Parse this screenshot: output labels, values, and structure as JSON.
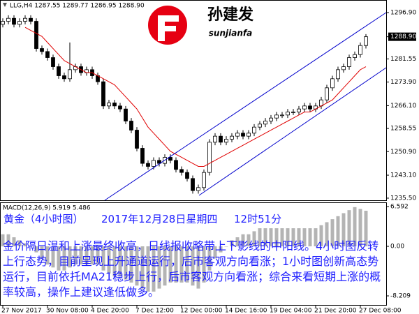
{
  "header_text": "LLG,H4 1287.55 1289.77 1286.95 1288.90",
  "logo": {
    "name": "孙建发",
    "subname": "sunjianfa"
  },
  "caption": {
    "title": "黄金（4小时图）",
    "date": "2017年12月28日星期四",
    "time": "12时51分",
    "text": "金价隔日温和上涨最终收高，日线报收略带上下影线的中阳线。4小时图反转上行态势，目前呈现上升通道运行，后市客观方向看涨；1小时图创新高态势运行，目前依托MA21稳步上行，后市客观方向看涨；综合来看短期上涨的概率较高，操作上建议逢低做多。"
  },
  "chart_data": [
    {
      "type": "candlestick",
      "categories": [
        "27 Nov 2017",
        null,
        null,
        null,
        null,
        null,
        null,
        null,
        "30 Nov 08:00",
        null,
        null,
        null,
        null,
        null,
        null,
        null,
        "4 Dec 20:00",
        null,
        null,
        null,
        null,
        null,
        null,
        null,
        "7 Dec 12:00",
        null,
        null,
        null,
        null,
        null,
        null,
        null,
        "12 Dec 00:00",
        null,
        null,
        null,
        null,
        null,
        null,
        null,
        "14 Dec 16:00",
        null,
        null,
        null,
        null,
        null,
        null,
        null,
        "19 Dec 04:00",
        null,
        null,
        null,
        null,
        null,
        null,
        null,
        "21 Dec 20:00",
        null,
        null,
        null,
        null,
        null,
        null,
        null,
        "27 Dec 08:00",
        null
      ],
      "open": [
        1293,
        1294,
        1295,
        1293,
        1294,
        1295,
        1294,
        1285,
        1284,
        1282,
        1279,
        1276,
        1275,
        1278,
        1279,
        1277,
        1278,
        1276,
        1274,
        1266,
        1267,
        1266,
        1265,
        1261,
        1258,
        1252,
        1247,
        1246,
        1248,
        1247,
        1249,
        1248,
        1245,
        1244,
        1242,
        1238,
        1239,
        1244,
        1254,
        1256,
        1254,
        1255,
        1256,
        1257,
        1256,
        1257,
        1259,
        1260,
        1261,
        1262,
        1263,
        1263,
        1264,
        1264,
        1265,
        1266,
        1265,
        1266,
        1268,
        1272,
        1275,
        1278,
        1279,
        1282,
        1283,
        1286
      ],
      "high": [
        1295,
        1296,
        1296,
        1295,
        1296,
        1296,
        1295,
        1286,
        1285,
        1283,
        1280,
        1277,
        1287,
        1280,
        1280,
        1279,
        1279,
        1277,
        1275,
        1268,
        1268,
        1267,
        1266,
        1262,
        1259,
        1253,
        1248,
        1249,
        1249,
        1250,
        1250,
        1249,
        1246,
        1245,
        1243,
        1240,
        1245,
        1255,
        1257,
        1257,
        1256,
        1257,
        1258,
        1258,
        1258,
        1260,
        1261,
        1262,
        1263,
        1264,
        1264,
        1265,
        1265,
        1266,
        1267,
        1267,
        1267,
        1269,
        1273,
        1276,
        1279,
        1280,
        1283,
        1284,
        1287,
        1289.77
      ],
      "low": [
        1292,
        1293,
        1292,
        1292,
        1293,
        1293,
        1284,
        1283,
        1281,
        1278,
        1275,
        1274,
        1274,
        1277,
        1276,
        1276,
        1275,
        1273,
        1265,
        1265,
        1265,
        1264,
        1260,
        1257,
        1251,
        1246,
        1245,
        1245,
        1246,
        1246,
        1247,
        1244,
        1243,
        1241,
        1237,
        1237,
        1238,
        1243,
        1253,
        1253,
        1253,
        1254,
        1255,
        1255,
        1255,
        1256,
        1258,
        1259,
        1260,
        1261,
        1262,
        1262,
        1263,
        1263,
        1264,
        1264,
        1264,
        1265,
        1267,
        1271,
        1274,
        1277,
        1278,
        1281,
        1282,
        1285
      ],
      "close": [
        1294,
        1295,
        1293,
        1294,
        1295,
        1294,
        1285,
        1284,
        1282,
        1279,
        1276,
        1275,
        1278,
        1279,
        1277,
        1278,
        1276,
        1274,
        1266,
        1267,
        1266,
        1265,
        1261,
        1258,
        1252,
        1247,
        1246,
        1248,
        1247,
        1249,
        1248,
        1245,
        1244,
        1242,
        1238,
        1239,
        1244,
        1254,
        1256,
        1254,
        1255,
        1256,
        1257,
        1256,
        1257,
        1259,
        1260,
        1261,
        1262,
        1263,
        1263,
        1264,
        1264,
        1265,
        1266,
        1265,
        1266,
        1268,
        1272,
        1275,
        1278,
        1279,
        1282,
        1283,
        1286,
        1288.9
      ],
      "ma": {
        "color": "#e00000",
        "values": [
          null,
          null,
          null,
          null,
          1292,
          1291,
          1290,
          1289,
          1287,
          1285,
          1283,
          1281,
          1280,
          1279,
          1278,
          1277,
          1277,
          1276,
          1275,
          1274,
          1273,
          1271,
          1269,
          1267,
          1265,
          1262,
          1259,
          1257,
          1255,
          1253,
          1251,
          1250,
          1249,
          1248,
          1247,
          1246,
          1246,
          1247,
          1248,
          1249,
          1250,
          1251,
          1252,
          1253,
          1254,
          1255,
          1256,
          1257,
          1258,
          1259,
          1260,
          1261,
          1262,
          1263,
          1264,
          1264,
          1265,
          1266,
          1267,
          1268,
          1270,
          1272,
          1274,
          1276,
          1278,
          1279
        ]
      },
      "ylim": [
        1234.8,
        1301.05
      ],
      "yticks": [
        {
          "value": 1296.9,
          "label": "1296.90"
        },
        {
          "value": 1281.55,
          "label": "1281.55"
        },
        {
          "value": 1273.9,
          "label": "1273.90"
        },
        {
          "value": 1266.1,
          "label": "1266.10"
        },
        {
          "value": 1258.55,
          "label": "1258.55"
        },
        {
          "value": 1250.9,
          "label": "1250.90"
        },
        {
          "value": 1243.1,
          "label": "1243.10"
        },
        {
          "value": 1235.5,
          "label": "1235.50"
        }
      ],
      "last_price": {
        "value": 1288.9,
        "label": "1288.90"
      }
    },
    {
      "type": "bar",
      "title": "MACD(12,26,9) 5.919 5.486",
      "color": "#b4b4b4",
      "values": [
        2,
        2,
        1.5,
        1,
        0.5,
        0,
        -1,
        -2,
        -3,
        -3.5,
        -4,
        -4,
        -3.5,
        -3,
        -3,
        -3,
        -3,
        -3,
        -4,
        -4.5,
        -5,
        -5,
        -5.5,
        -6,
        -6.5,
        -7,
        -7.5,
        -7.5,
        -7,
        -6.5,
        -6,
        -6,
        -6,
        -6,
        -6.5,
        -7,
        -6,
        -4,
        -2,
        -1,
        0,
        1,
        1.5,
        2,
        2,
        2.5,
        3,
        3,
        3,
        3,
        3,
        3,
        3,
        3,
        3,
        3,
        3,
        3.5,
        4,
        4.5,
        5,
        5.5,
        6,
        6.5,
        6.2,
        5.9
      ],
      "ylim": [
        -9.71,
        7.29
      ],
      "yticks": [
        6.592,
        {
          "value": 0,
          "label": "0.00"
        },
        -8.209
      ]
    }
  ]
}
